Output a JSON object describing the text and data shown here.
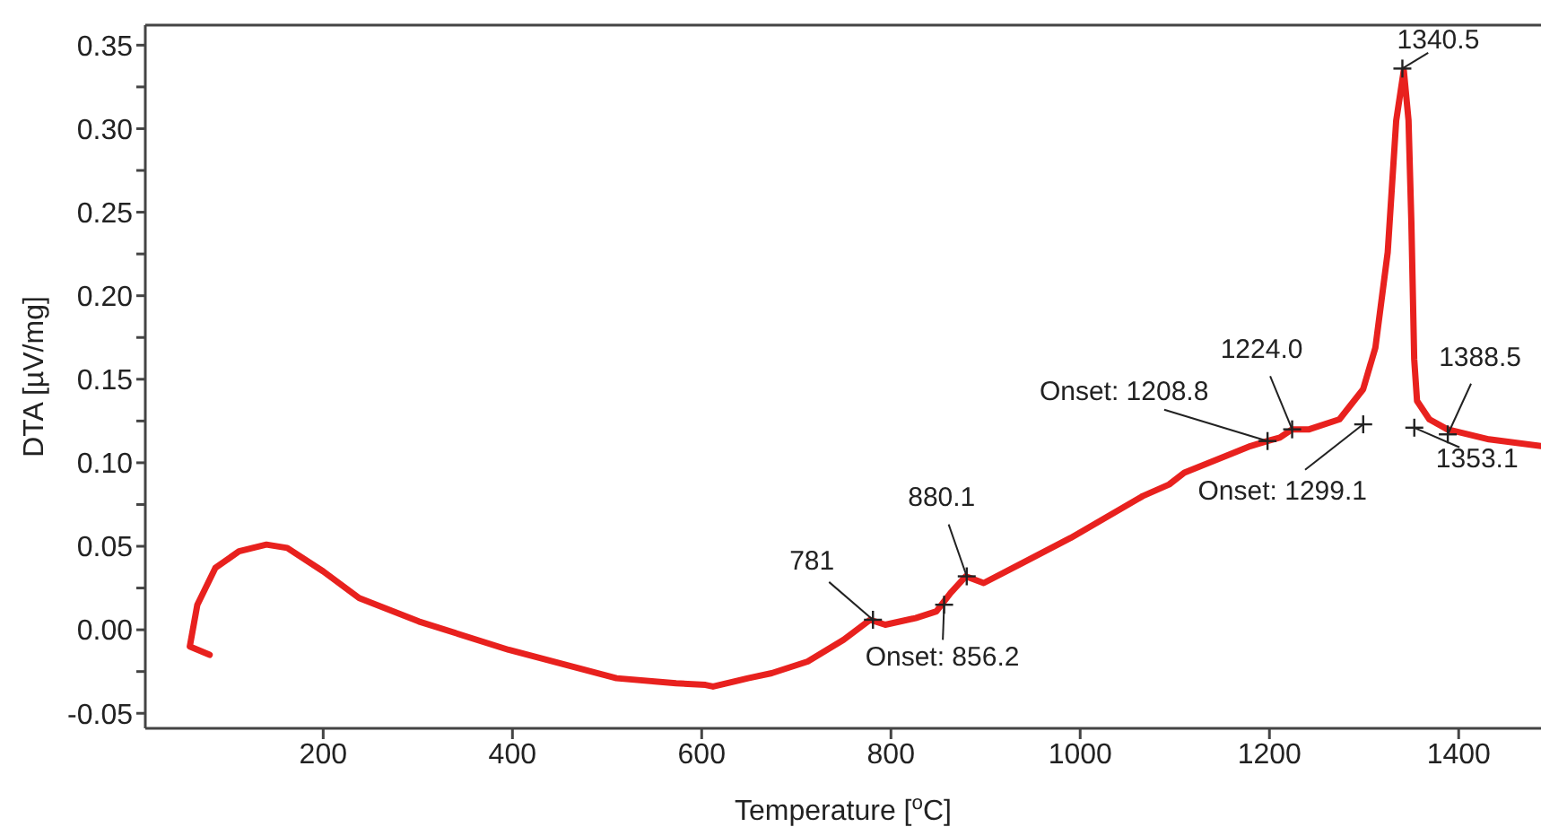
{
  "chart_data": {
    "type": "line",
    "xlabel": "Temperature [$^{o}$C]",
    "ylabel": "DTA [µV/mg]",
    "xlim": [
      12,
      1487
    ],
    "xticks": [
      200,
      400,
      600,
      800,
      1000,
      1200,
      1400
    ],
    "ylim": [
      -0.059,
      0.362
    ],
    "yticks": [
      {
        "value": -0.05,
        "label": "-0.05"
      },
      {
        "value": -0.025,
        "label": null
      },
      {
        "value": 0,
        "label": "0.00"
      },
      {
        "value": 0.025,
        "label": null
      },
      {
        "value": 0.05,
        "label": "0.05"
      },
      {
        "value": 0.075,
        "label": null
      },
      {
        "value": 0.1,
        "label": "0.10"
      },
      {
        "value": 0.125,
        "label": null
      },
      {
        "value": 0.15,
        "label": "0.15"
      },
      {
        "value": 0.175,
        "label": null
      },
      {
        "value": 0.2,
        "label": "0.20"
      },
      {
        "value": 0.225,
        "label": null
      },
      {
        "value": 0.25,
        "label": "0.25"
      },
      {
        "value": 0.275,
        "label": null
      },
      {
        "value": 0.3,
        "label": "0.30"
      },
      {
        "value": 0.325,
        "label": null
      },
      {
        "value": 0.35,
        "label": "0.35"
      }
    ],
    "marker": "none",
    "line_style": "solid",
    "series": [
      {
        "color": "#e8211e",
        "x": [
          80,
          59,
          67,
          86,
          111,
          140,
          162,
          200,
          238,
          301,
          396,
          510,
          573,
          604,
          612,
          649,
          674,
          712,
          750,
          778,
          794,
          826,
          848,
          863,
          879,
          898,
          939,
          990,
          1066,
          1094,
          1110,
          1180,
          1198,
          1211,
          1224,
          1242,
          1274,
          1299,
          1312,
          1325,
          1334,
          1342,
          1347,
          1350,
          1353,
          1356,
          1369,
          1388,
          1432,
          1487
        ],
        "values": [
          -0.015,
          -0.01,
          0.015,
          0.037,
          0.047,
          0.051,
          0.049,
          0.035,
          0.019,
          0.005,
          -0.012,
          -0.029,
          -0.032,
          -0.033,
          -0.034,
          -0.029,
          -0.026,
          -0.019,
          -0.006,
          0.006,
          0.003,
          0.007,
          0.011,
          0.022,
          0.032,
          0.028,
          0.04,
          0.055,
          0.08,
          0.087,
          0.094,
          0.11,
          0.113,
          0.115,
          0.12,
          0.12,
          0.126,
          0.144,
          0.169,
          0.226,
          0.305,
          0.335,
          0.305,
          0.244,
          0.162,
          0.137,
          0.126,
          0.12,
          0.114,
          0.11
        ]
      }
    ],
    "annotations": [
      {
        "text": "781",
        "x": 781,
        "y": 0.006
      },
      {
        "text": "Onset: 856.2",
        "x": 856.2,
        "y": 0.015
      },
      {
        "text": "880.1",
        "x": 880.1,
        "y": 0.032
      },
      {
        "text": "Onset: 1208.8",
        "x": 1198,
        "y": 0.113
      },
      {
        "text": "1224.0",
        "x": 1224,
        "y": 0.12
      },
      {
        "text": "Onset: 1299.1",
        "x": 1299.1,
        "y": 0.123
      },
      {
        "text": "1340.5",
        "x": 1340.5,
        "y": 0.336
      },
      {
        "text": "1353.1",
        "x": 1353.1,
        "y": 0.121
      },
      {
        "text": "1388.5",
        "x": 1388.5,
        "y": 0.117
      }
    ]
  }
}
